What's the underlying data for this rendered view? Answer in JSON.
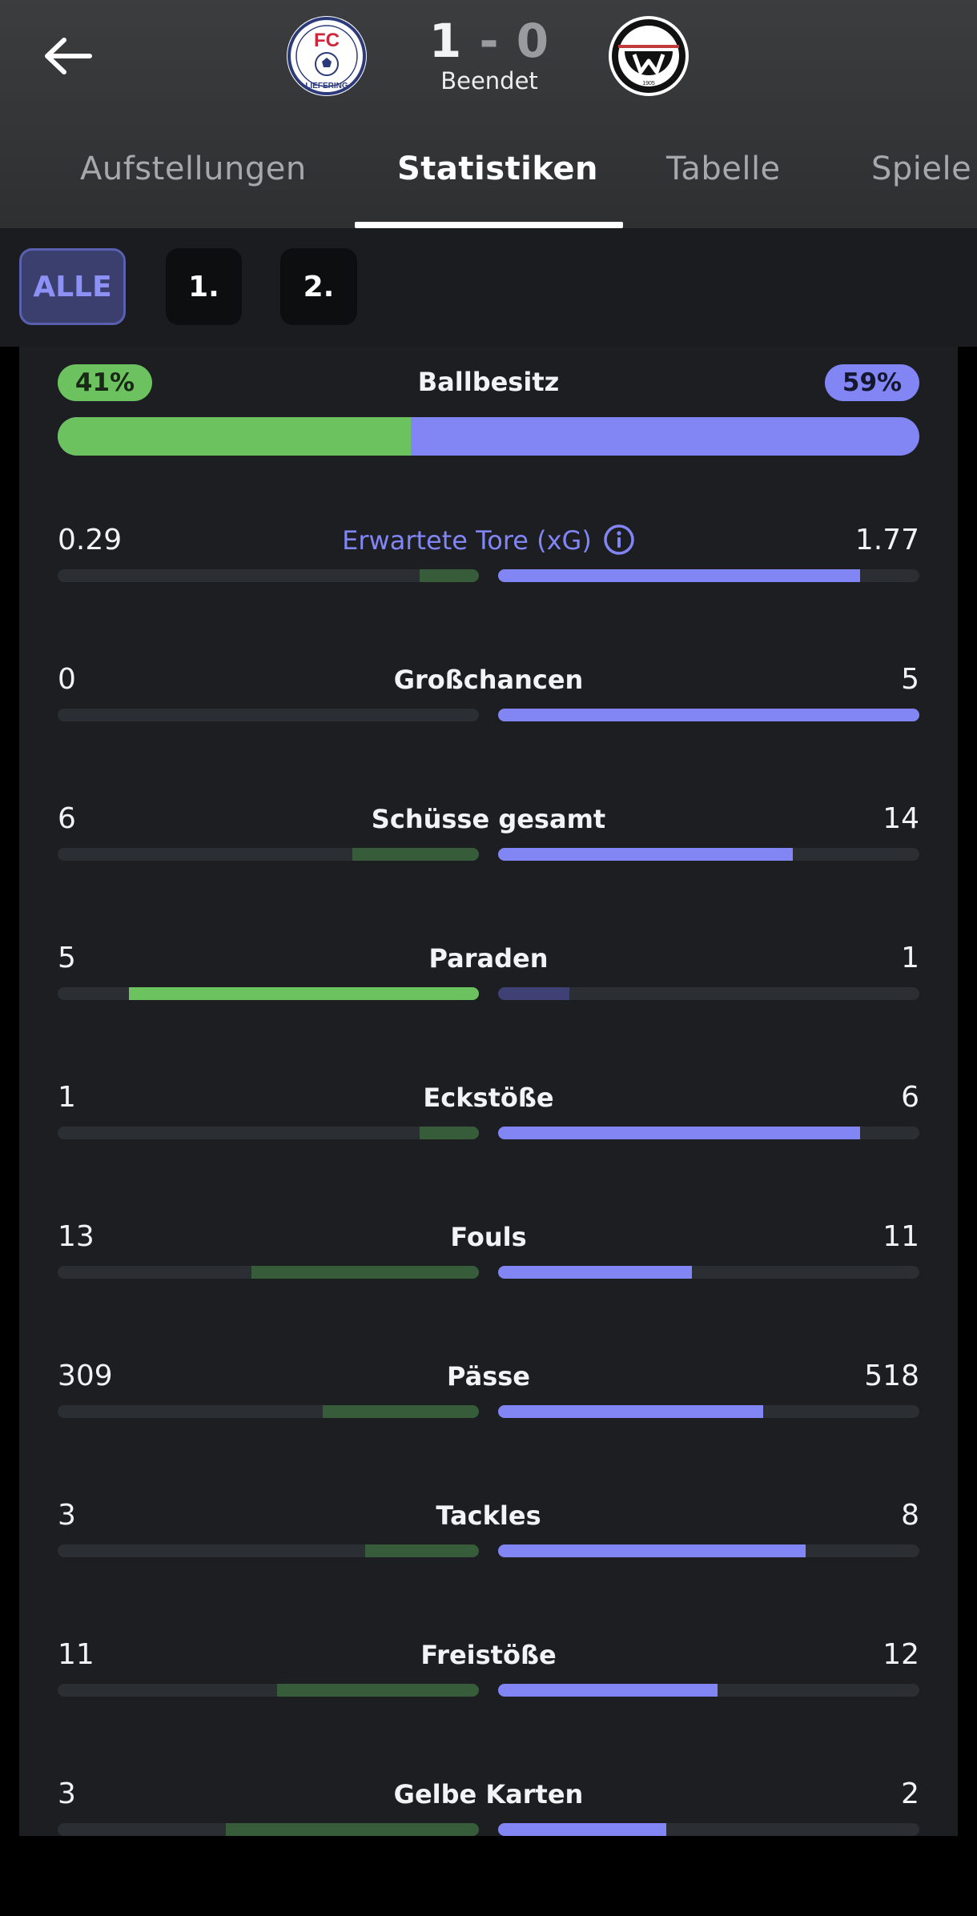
{
  "header": {
    "home_goals": "1",
    "separator": "-",
    "away_goals": "0",
    "status": "Beendet",
    "home_crest": {
      "text": "FC",
      "ring_text": "LIEFERING"
    },
    "away_crest": {
      "year": "1905"
    }
  },
  "tabs": [
    "Aufstellungen",
    "Statistiken",
    "Tabelle",
    "Spiele"
  ],
  "active_tab": "Statistiken",
  "filters": [
    "ALLE",
    "1.",
    "2."
  ],
  "active_filter": "ALLE",
  "colors": {
    "home": "#6bc25e",
    "away": "#8286f5",
    "background": "#1c1e22"
  },
  "possession": {
    "label": "Ballbesitz",
    "home": "41%",
    "away": "59%",
    "home_fraction": 0.41
  },
  "stats": [
    {
      "label": "Erwartete Tore (xG)",
      "home": "0.29",
      "away": "1.77",
      "home_share": 0.14,
      "away_share": 0.86,
      "leader": "away",
      "has_info": true
    },
    {
      "label": "Großchancen",
      "home": "0",
      "away": "5",
      "home_share": 0.0,
      "away_share": 1.0,
      "leader": "away"
    },
    {
      "label": "Schüsse gesamt",
      "home": "6",
      "away": "14",
      "home_share": 0.3,
      "away_share": 0.7,
      "leader": "away"
    },
    {
      "label": "Paraden",
      "home": "5",
      "away": "1",
      "home_share": 0.83,
      "away_share": 0.17,
      "leader": "home"
    },
    {
      "label": "Eckstöße",
      "home": "1",
      "away": "6",
      "home_share": 0.14,
      "away_share": 0.86,
      "leader": "away"
    },
    {
      "label": "Fouls",
      "home": "13",
      "away": "11",
      "home_share": 0.54,
      "away_share": 0.46,
      "leader": "away"
    },
    {
      "label": "Pässe",
      "home": "309",
      "away": "518",
      "home_share": 0.37,
      "away_share": 0.63,
      "leader": "away"
    },
    {
      "label": "Tackles",
      "home": "3",
      "away": "8",
      "home_share": 0.27,
      "away_share": 0.73,
      "leader": "away"
    },
    {
      "label": "Freistöße",
      "home": "11",
      "away": "12",
      "home_share": 0.48,
      "away_share": 0.52,
      "leader": "away"
    },
    {
      "label": "Gelbe Karten",
      "home": "3",
      "away": "2",
      "home_share": 0.6,
      "away_share": 0.4,
      "leader": "away"
    }
  ]
}
